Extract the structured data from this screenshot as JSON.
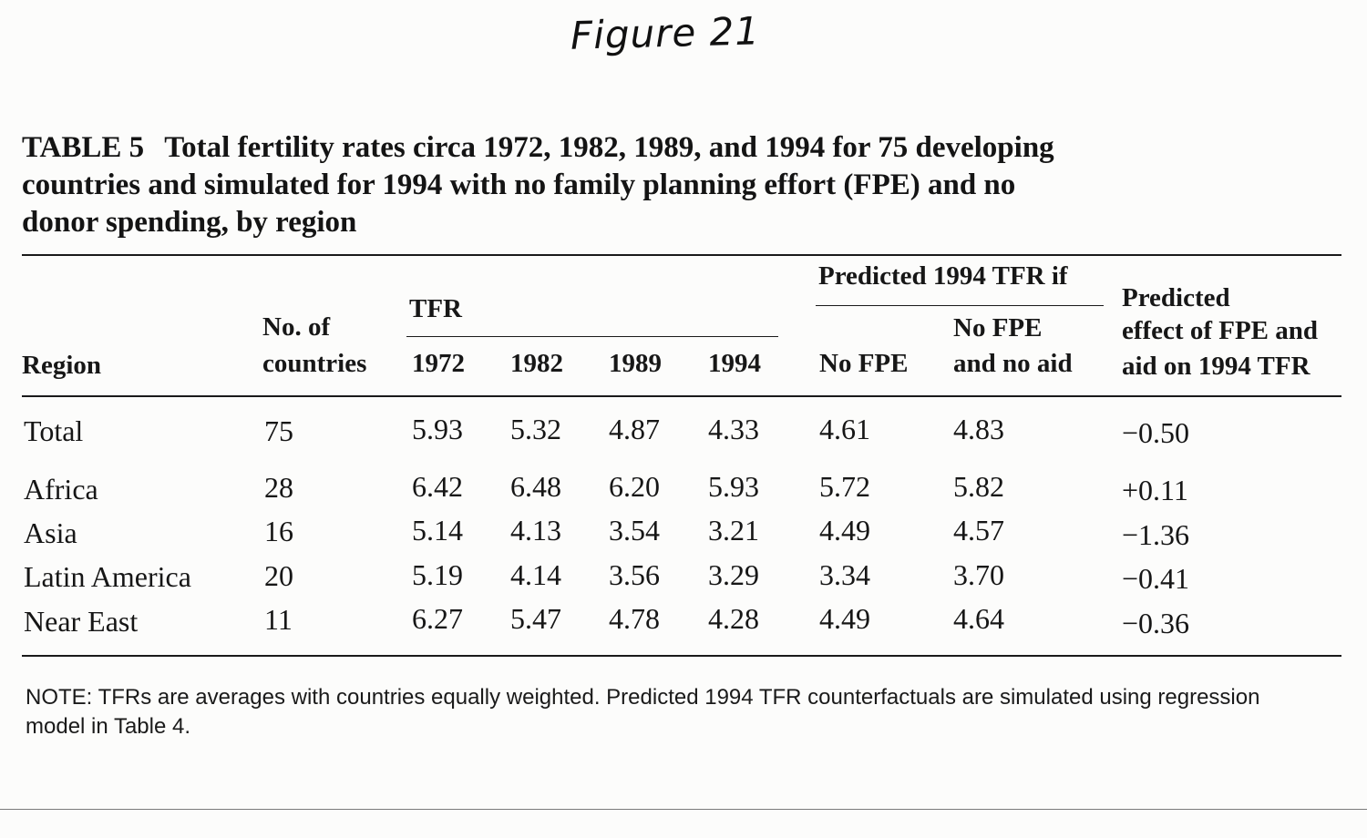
{
  "handwritten_title": "Figure 21",
  "table": {
    "label": "TABLE 5",
    "caption_lines": [
      "Total fertility rates circa 1972, 1982, 1989, and 1994 for 75 developing",
      "countries and simulated for 1994 with no family planning effort (FPE) and no",
      "donor spending, by region"
    ],
    "headers": {
      "region": "Region",
      "no_of_countries_line1": "No. of",
      "no_of_countries_line2": "countries",
      "tfr_group": "TFR",
      "tfr_years": [
        "1972",
        "1982",
        "1989",
        "1994"
      ],
      "predicted_group": "Predicted 1994 TFR if",
      "no_fpe": "No FPE",
      "no_fpe_no_aid_line1": "No FPE",
      "no_fpe_no_aid_line2": "and no aid",
      "effect_line1": "Predicted",
      "effect_line2": "effect of FPE and",
      "effect_line3": "aid on 1994 TFR"
    },
    "rows": [
      {
        "region": "Total",
        "countries": "75",
        "tfr_1972": "5.93",
        "tfr_1982": "5.32",
        "tfr_1989": "4.87",
        "tfr_1994": "4.33",
        "no_fpe": "4.61",
        "no_fpe_no_aid": "4.83",
        "effect": "−0.50"
      },
      {
        "region": "Africa",
        "countries": "28",
        "tfr_1972": "6.42",
        "tfr_1982": "6.48",
        "tfr_1989": "6.20",
        "tfr_1994": "5.93",
        "no_fpe": "5.72",
        "no_fpe_no_aid": "5.82",
        "effect": "+0.11"
      },
      {
        "region": "Asia",
        "countries": "16",
        "tfr_1972": "5.14",
        "tfr_1982": "4.13",
        "tfr_1989": "3.54",
        "tfr_1994": "3.21",
        "no_fpe": "4.49",
        "no_fpe_no_aid": "4.57",
        "effect": "−1.36"
      },
      {
        "region": "Latin America",
        "countries": "20",
        "tfr_1972": "5.19",
        "tfr_1982": "4.14",
        "tfr_1989": "3.56",
        "tfr_1994": "3.29",
        "no_fpe": "3.34",
        "no_fpe_no_aid": "3.70",
        "effect": "−0.41"
      },
      {
        "region": "Near East",
        "countries": "11",
        "tfr_1972": "6.27",
        "tfr_1982": "5.47",
        "tfr_1989": "4.78",
        "tfr_1994": "4.28",
        "no_fpe": "4.49",
        "no_fpe_no_aid": "4.64",
        "effect": "−0.36"
      }
    ],
    "note_lines": [
      "NOTE: TFRs are averages with countries equally weighted. Predicted 1994 TFR counterfactuals are simulated using regression",
      "model in Table 4."
    ]
  }
}
